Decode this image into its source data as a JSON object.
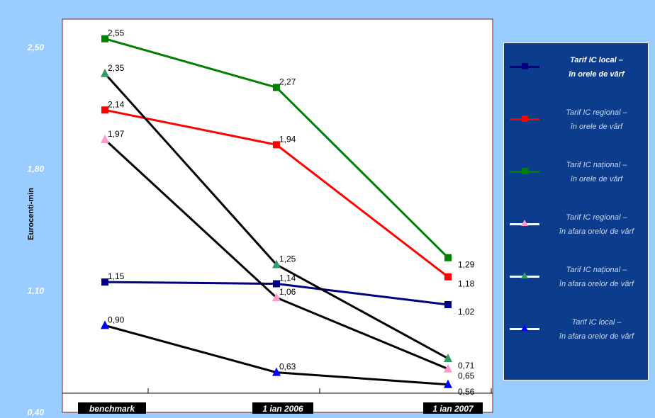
{
  "chart_data": {
    "type": "line",
    "ylabel": "Eurocenti-min",
    "ylim": [
      0.4,
      2.5
    ],
    "y_ticks": [
      "2,50",
      "1,80",
      "1,10",
      "0,40"
    ],
    "categories": [
      "benchmark",
      "1 ian 2006",
      "1 ian 2007"
    ],
    "series": [
      {
        "name_line1": "Tarif IC local –",
        "name_line2": "în orele de vârf",
        "color": "#000080",
        "marker": "square",
        "values": [
          1.15,
          1.14,
          1.02
        ],
        "labels": [
          "1,15",
          "1,14",
          "1,02"
        ]
      },
      {
        "name_line1": "Tarif IC regional –",
        "name_line2": "în orele de vârf",
        "color": "#ff0000",
        "marker": "square",
        "values": [
          2.14,
          1.94,
          1.18
        ],
        "labels": [
          "2,14",
          "1,94",
          "1,18"
        ]
      },
      {
        "name_line1": "Tarif IC național –",
        "name_line2": "în orele de vârf",
        "color": "#008000",
        "marker": "square",
        "values": [
          2.55,
          2.27,
          1.29
        ],
        "labels": [
          "2,55",
          "2,27",
          "1,29"
        ]
      },
      {
        "name_line1": "Tarif IC regional –",
        "name_line2": "în afara orelor de vârf",
        "color": "#ff99cc",
        "line_color": "#000000",
        "legend_line_color": "#ffffff",
        "marker": "triangle",
        "values": [
          1.97,
          1.06,
          0.65
        ],
        "labels": [
          "1,97",
          "1,06",
          "0,65"
        ]
      },
      {
        "name_line1": "Tarif IC național –",
        "name_line2": "în afara orelor de vârf",
        "color": "#339966",
        "line_color": "#000000",
        "legend_line_color": "#ffffff",
        "marker": "triangle",
        "values": [
          2.35,
          1.25,
          0.71
        ],
        "labels": [
          "2,35",
          "1,25",
          "0,71"
        ]
      },
      {
        "name_line1": "Tarif IC local –",
        "name_line2": "în afara orelor de vârf",
        "color": "#0000ff",
        "line_color": "#000000",
        "legend_line_color": "#ffffff",
        "marker": "triangle",
        "values": [
          0.9,
          0.63,
          0.56
        ],
        "labels": [
          "0,90",
          "0,63",
          "0,56"
        ]
      }
    ],
    "legend_position": "right",
    "grid": false
  }
}
